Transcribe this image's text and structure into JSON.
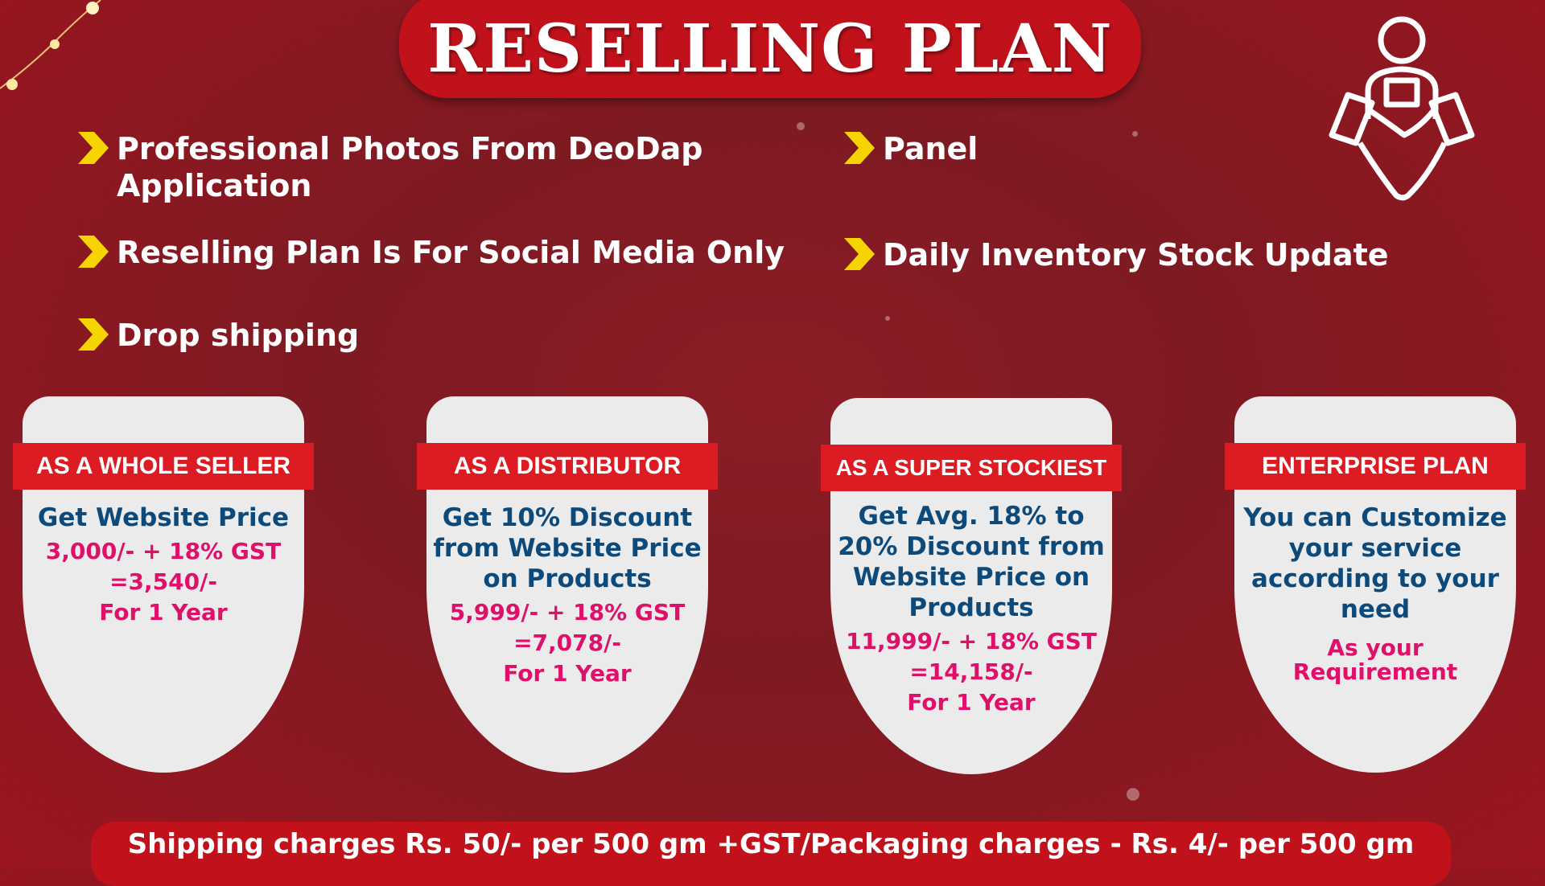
{
  "title": "RESELLING PLAN",
  "features": [
    {
      "icon": "chevron-right-icon",
      "text": "Professional Photos From DeoDap Application"
    },
    {
      "icon": "chevron-right-icon",
      "text": "Panel"
    },
    {
      "icon": "chevron-right-icon",
      "text": "Reselling Plan Is For Social Media Only"
    },
    {
      "icon": "chevron-right-icon",
      "text": "Daily Inventory Stock Update"
    },
    {
      "icon": "chevron-right-icon",
      "text": "Drop shipping"
    }
  ],
  "plans": [
    {
      "name": "AS A WHOLE SELLER",
      "description": "Get Website Price",
      "price": "3,000/- + 18% GST",
      "total": "=3,540/-",
      "term": "For 1 Year"
    },
    {
      "name": "AS A DISTRIBUTOR",
      "description": "Get 10% Discount from Website Price on Products",
      "price": "5,999/- + 18% GST",
      "total": "=7,078/-",
      "term": "For 1 Year"
    },
    {
      "name": "AS A SUPER STOCKIEST",
      "description": "Get Avg. 18% to 20% Discount from Website Price on Products",
      "price": "11,999/- + 18% GST",
      "total": "=14,158/-",
      "term": "For 1 Year"
    },
    {
      "name": "ENTERPRISE PLAN",
      "description": "You can Customize your service according to your need",
      "price": "As your Requirement"
    }
  ],
  "footer": "Shipping charges Rs. 50/- per 500 gm +GST/Packaging charges - Rs. 4/- per 500 gm",
  "colors": {
    "background": "#8c1c26",
    "accent_red": "#dd1b22",
    "heading_blue": "#0c4a7c",
    "price_pink": "#e0106a",
    "bullet_yellow": "#f5d400"
  }
}
